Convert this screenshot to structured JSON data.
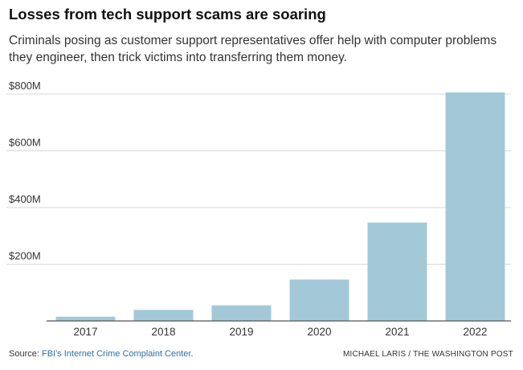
{
  "chart_data": {
    "type": "bar",
    "title": "Losses from tech support scams are soaring",
    "subtitle": "Criminals posing as customer support representatives offer help with computer problems they engineer, then trick victims into transferring them money.",
    "categories": [
      "2017",
      "2018",
      "2019",
      "2020",
      "2021",
      "2022"
    ],
    "values": [
      15,
      39,
      55,
      146,
      347,
      806
    ],
    "unit": "millions of dollars",
    "ylim": [
      0,
      800
    ],
    "yticks": [
      200,
      400,
      600,
      800
    ],
    "ytick_labels": [
      "$200M",
      "$400M",
      "$600M",
      "$800M"
    ],
    "xlabel": "",
    "ylabel": "",
    "grid": true,
    "bar_color": "#a3c9d9",
    "grid_color": "#d9d9d9",
    "axis_color": "#555555"
  },
  "footer": {
    "source_label": "Source: ",
    "source_link": "FBI's Internet Crime Complaint Center.",
    "credit": "MICHAEL LARIS / THE WASHINGTON POST"
  }
}
